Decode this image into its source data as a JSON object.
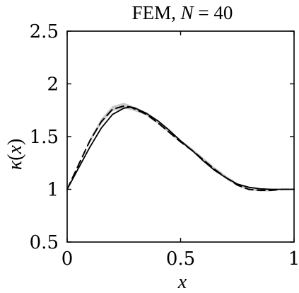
{
  "chart_data": {
    "type": "line",
    "title": "FEM, N = 40",
    "title_parts": {
      "prefix": "FEM, ",
      "var": "N",
      "suffix": " = 40"
    },
    "xlabel": "x",
    "ylabel": "κ(x)",
    "ylabel_parts": {
      "kappa": "κ",
      "open": "(",
      "var": "x",
      "close": ")"
    },
    "xlim": [
      0,
      1
    ],
    "ylim": [
      0.5,
      2.5
    ],
    "xticks": [
      0,
      0.5,
      1
    ],
    "xtick_labels": [
      "0",
      "0.5",
      "1"
    ],
    "yticks": [
      0.5,
      1,
      1.5,
      2,
      2.5
    ],
    "ytick_labels": [
      "0.5",
      "1",
      "1.5",
      "2",
      "2.5"
    ],
    "grid": false,
    "box": true,
    "series": [
      {
        "style": "solid",
        "color": "#000000",
        "x": [
          0,
          0.05,
          0.1,
          0.15,
          0.2,
          0.25,
          0.28,
          0.3,
          0.35,
          0.4,
          0.45,
          0.5,
          0.55,
          0.6,
          0.65,
          0.7,
          0.75,
          0.8,
          0.85,
          0.9,
          0.95,
          1.0
        ],
        "y": [
          1.0,
          1.2,
          1.4,
          1.58,
          1.71,
          1.77,
          1.78,
          1.77,
          1.72,
          1.65,
          1.56,
          1.46,
          1.37,
          1.27,
          1.18,
          1.11,
          1.05,
          1.02,
          1.005,
          1.0,
          1.0,
          1.0
        ]
      },
      {
        "style": "dashed",
        "color": "#000000",
        "x": [
          0,
          0.05,
          0.1,
          0.15,
          0.2,
          0.25,
          0.28,
          0.3,
          0.35,
          0.4,
          0.45,
          0.5,
          0.55,
          0.6,
          0.65,
          0.7,
          0.75,
          0.8,
          0.85,
          0.9,
          0.95,
          1.0
        ],
        "y": [
          1.0,
          1.23,
          1.46,
          1.64,
          1.76,
          1.79,
          1.78,
          1.76,
          1.71,
          1.63,
          1.54,
          1.45,
          1.37,
          1.28,
          1.19,
          1.11,
          1.04,
          1.0,
          0.99,
          0.99,
          1.0,
          1.0
        ]
      }
    ],
    "uncertainty_band": {
      "color": "#bdbdbd",
      "x": [
        0.1,
        0.15,
        0.2,
        0.25,
        0.3,
        0.35,
        0.4,
        0.45,
        0.5,
        0.55,
        0.6,
        0.65,
        0.7,
        0.75,
        0.8,
        0.85,
        0.9
      ],
      "lower": [
        1.44,
        1.62,
        1.74,
        1.77,
        1.74,
        1.7,
        1.62,
        1.53,
        1.44,
        1.36,
        1.27,
        1.18,
        1.1,
        1.03,
        0.99,
        0.98,
        0.98
      ],
      "upper": [
        1.48,
        1.67,
        1.79,
        1.82,
        1.78,
        1.73,
        1.65,
        1.56,
        1.47,
        1.39,
        1.3,
        1.21,
        1.13,
        1.06,
        1.02,
        1.0,
        1.0
      ]
    }
  }
}
